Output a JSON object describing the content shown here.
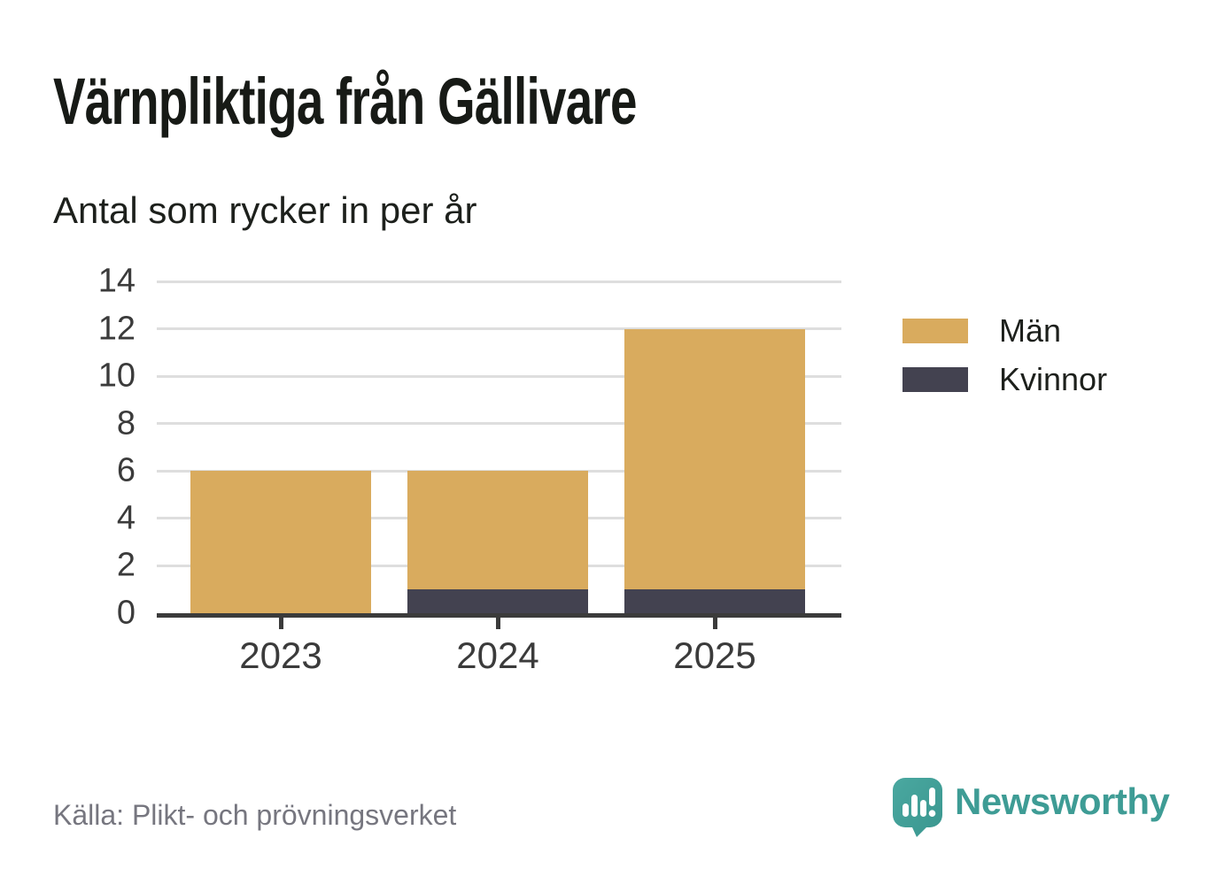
{
  "chart_data": {
    "type": "bar",
    "stacked": true,
    "title": "Värnpliktiga från Gällivare",
    "subtitle": "Antal som rycker in per år",
    "categories": [
      "2023",
      "2024",
      "2025"
    ],
    "series": [
      {
        "name": "Män",
        "color": "#d9ab5e",
        "values": [
          6,
          5,
          11
        ]
      },
      {
        "name": "Kvinnor",
        "color": "#434250",
        "values": [
          0,
          1,
          1
        ]
      }
    ],
    "stack_totals": [
      6,
      6,
      12
    ],
    "ylim": [
      0,
      14
    ],
    "yticks": [
      0,
      2,
      4,
      6,
      8,
      10,
      12,
      14
    ],
    "grid": true,
    "legend_position": "right",
    "stack_order_bottom_to_top": [
      "Kvinnor",
      "Män"
    ]
  },
  "footer": {
    "source": "Källa: Plikt- och prövningsverket",
    "brand": "Newsworthy"
  },
  "colors": {
    "axis": "#3b3b3b",
    "gridline": "#dedede",
    "title_text": "#171a16",
    "muted_text": "#76767f",
    "brand_teal": "#3e9c95"
  },
  "icons": {
    "brand_logo": "newsworthy-speech-bubble-bar-chart-icon"
  }
}
